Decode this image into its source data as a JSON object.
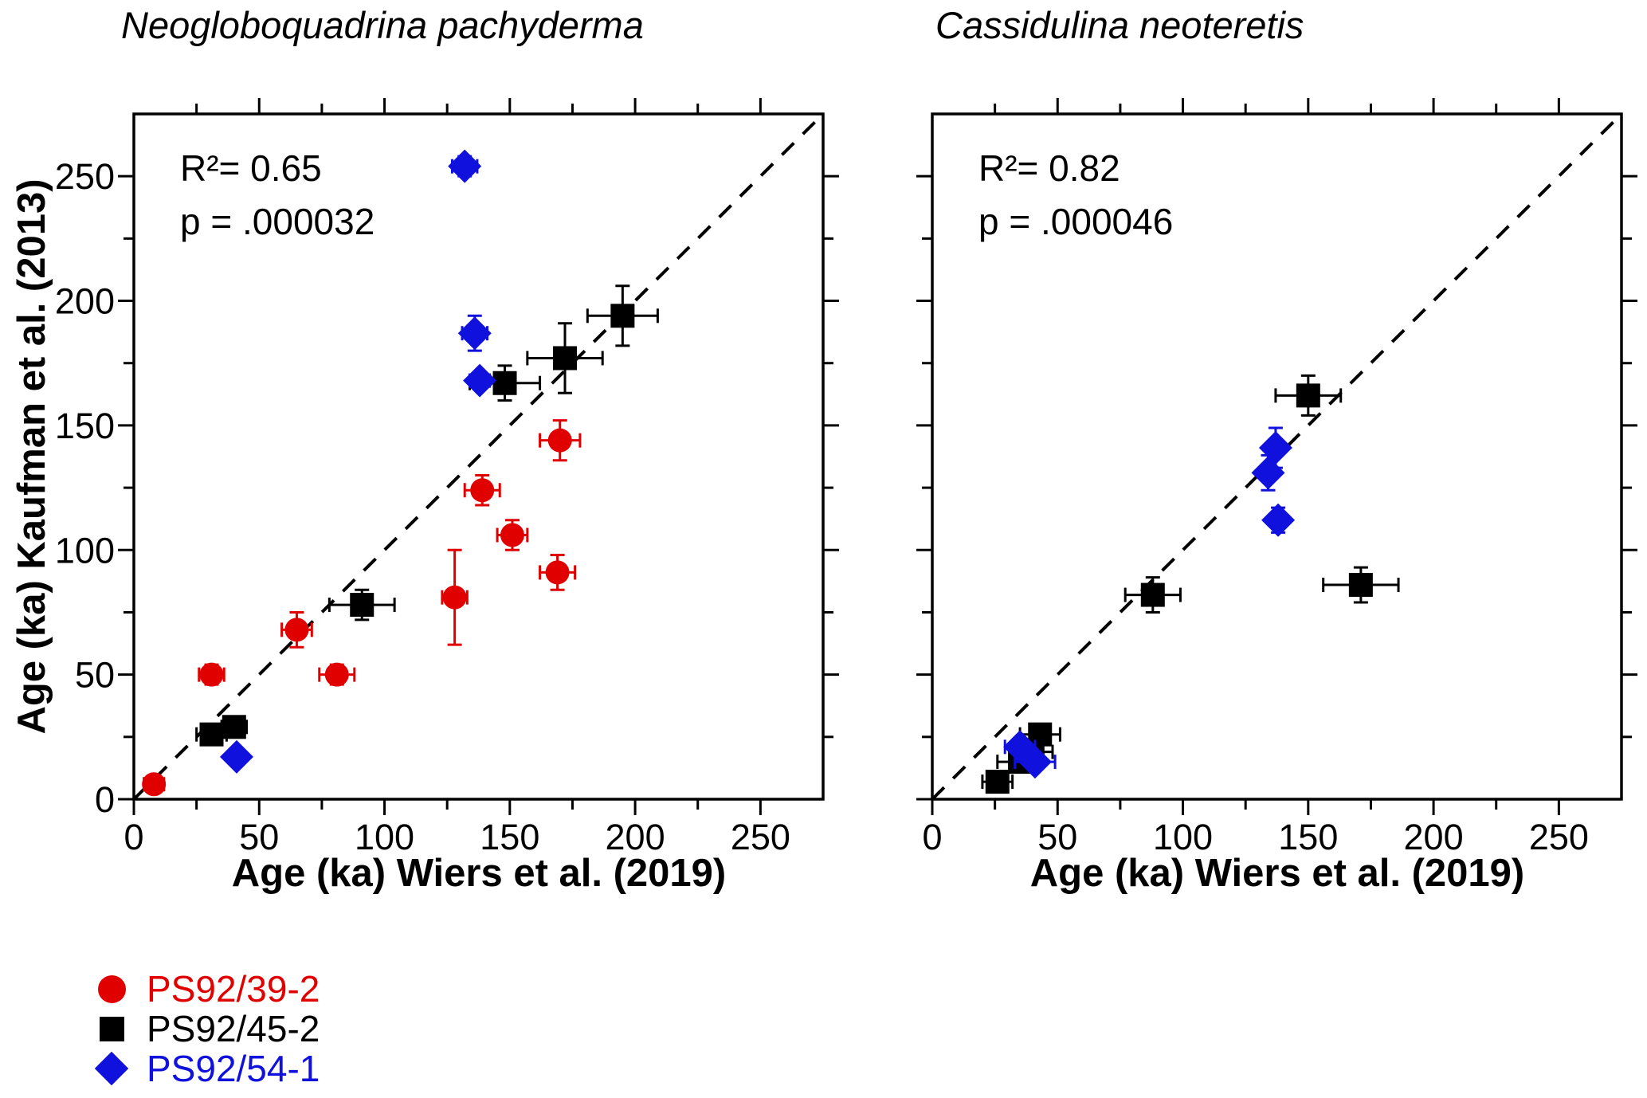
{
  "figure": {
    "background": "#ffffff",
    "axis_color": "#000000"
  },
  "legend": {
    "position": "bottom-left",
    "items": [
      {
        "label": "PS92/39-2",
        "marker": "circle",
        "color": "#e00000"
      },
      {
        "label": "PS92/45-2",
        "marker": "square",
        "color": "#000000"
      },
      {
        "label": "PS92/54-1",
        "marker": "diamond",
        "color": "#1111dd"
      }
    ]
  },
  "chart_data": [
    {
      "type": "scatter",
      "title": "Neogloboquadrina pachyderma",
      "stats": {
        "r2_label": "R²= 0.65",
        "p_label": "p = .000032"
      },
      "xlabel": "Age (ka) Wiers et al. (2019)",
      "ylabel": "Age (ka) Kaufman et al. (2013)",
      "xlim": [
        0,
        275
      ],
      "ylim": [
        0,
        275
      ],
      "xticks": [
        0,
        50,
        100,
        150,
        200,
        250
      ],
      "yticks": [
        0,
        50,
        100,
        150,
        200,
        250
      ],
      "minor_tick_step": 25,
      "show_ytick_labels": true,
      "grid": false,
      "identity_line": {
        "style": "dashed",
        "from": [
          0,
          0
        ],
        "to": [
          275,
          275
        ]
      },
      "point_format": "[x_ka, y_ka, xerr_ka, yerr_ka]",
      "series": [
        {
          "name": "PS92/39-2",
          "marker": "circle",
          "color": "#e00000",
          "points": [
            [
              8,
              6,
              4,
              2
            ],
            [
              31,
              50,
              5,
              4
            ],
            [
              65,
              68,
              6,
              7
            ],
            [
              81,
              50,
              7,
              4
            ],
            [
              128,
              81,
              5,
              19
            ],
            [
              139,
              124,
              7,
              6
            ],
            [
              151,
              106,
              6,
              6
            ],
            [
              170,
              144,
              8,
              8
            ],
            [
              169,
              91,
              7,
              7
            ]
          ]
        },
        {
          "name": "PS92/45-2",
          "marker": "square",
          "color": "#000000",
          "points": [
            [
              31,
              26,
              6,
              3
            ],
            [
              40,
              29,
              5,
              3
            ],
            [
              91,
              78,
              13,
              6
            ],
            [
              148,
              167,
              14,
              7
            ],
            [
              172,
              177,
              15,
              14
            ],
            [
              195,
              194,
              14,
              12
            ]
          ]
        },
        {
          "name": "PS92/54-1",
          "marker": "diamond",
          "color": "#1111dd",
          "points": [
            [
              41,
              17,
              3,
              2
            ],
            [
              132,
              254,
              5,
              4
            ],
            [
              136,
              187,
              5,
              7
            ],
            [
              138,
              168,
              4,
              3
            ]
          ]
        }
      ]
    },
    {
      "type": "scatter",
      "title": "Cassidulina neoteretis",
      "stats": {
        "r2_label": "R²= 0.82",
        "p_label": "p = .000046"
      },
      "xlabel": "Age (ka) Wiers et al. (2019)",
      "ylabel": "",
      "xlim": [
        0,
        275
      ],
      "ylim": [
        0,
        275
      ],
      "xticks": [
        0,
        50,
        100,
        150,
        200,
        250
      ],
      "yticks": [
        0,
        50,
        100,
        150,
        200,
        250
      ],
      "minor_tick_step": 25,
      "show_ytick_labels": false,
      "grid": false,
      "identity_line": {
        "style": "dashed",
        "from": [
          0,
          0
        ],
        "to": [
          275,
          275
        ]
      },
      "point_format": "[x_ka, y_ka, xerr_ka, yerr_ka]",
      "series": [
        {
          "name": "PS92/45-2",
          "marker": "square",
          "color": "#000000",
          "points": [
            [
              26,
              7,
              6,
              2
            ],
            [
              35,
              15,
              9,
              3
            ],
            [
              40,
              19,
              8,
              3
            ],
            [
              43,
              26,
              8,
              3
            ],
            [
              88,
              82,
              11,
              7
            ],
            [
              150,
              162,
              13,
              8
            ],
            [
              171,
              86,
              15,
              7
            ]
          ]
        },
        {
          "name": "PS92/54-1",
          "marker": "diamond",
          "color": "#1111dd",
          "points": [
            [
              35,
              21,
              6,
              2
            ],
            [
              41,
              15,
              8,
              2
            ],
            [
              134,
              131,
              3,
              7
            ],
            [
              137,
              141,
              3,
              8
            ],
            [
              138,
              112,
              3,
              5
            ]
          ]
        }
      ]
    }
  ]
}
